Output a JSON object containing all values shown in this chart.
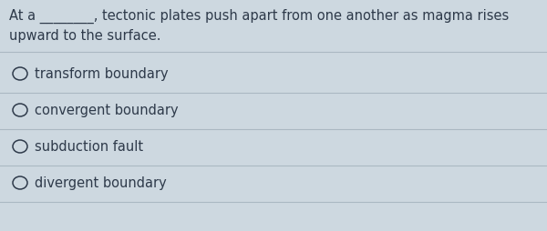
{
  "question_line1": "At a ________, tectonic plates push apart from one another as magma rises",
  "question_line2": "upward to the surface.",
  "options": [
    "transform boundary",
    "convergent boundary",
    "subduction fault",
    "divergent boundary"
  ],
  "bg_color": "#cdd8e0",
  "text_color": "#2e3a4a",
  "question_fontsize": 10.5,
  "option_fontsize": 10.5,
  "line_color": "#aab8c2"
}
